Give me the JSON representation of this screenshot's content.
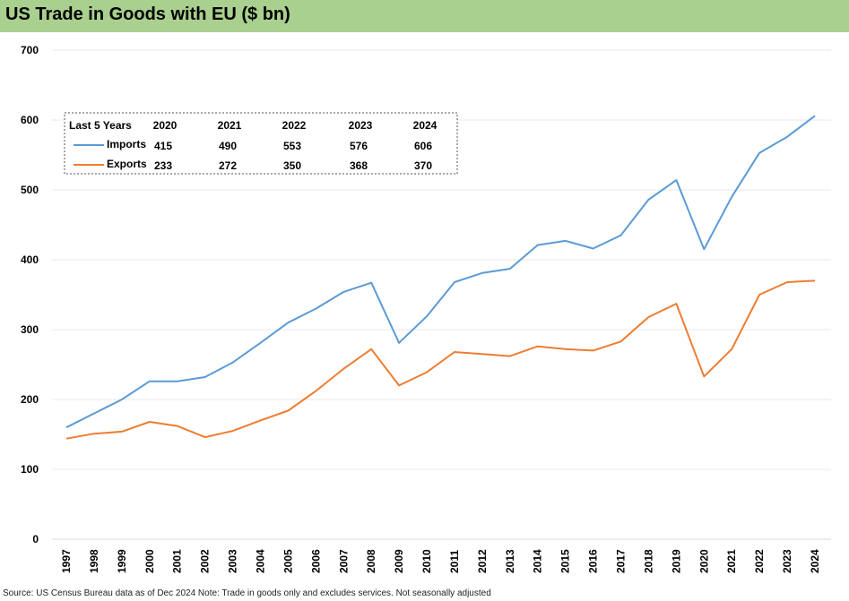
{
  "header": {
    "title": "US Trade in Goods with EU ($ bn)"
  },
  "footer": {
    "source": "Source: US Census Bureau data as of Dec 2024 Note: Trade in goods only and excludes services. Not seasonally adjusted"
  },
  "colors": {
    "title_bar": "#a9d08e",
    "imports": "#5b9bd5",
    "exports": "#ed7d31",
    "grid": "#e8e8e8"
  },
  "chart_data": {
    "type": "line",
    "title": "US Trade in Goods with EU ($ bn)",
    "xlabel": "",
    "ylabel": "",
    "ylim": [
      0,
      700
    ],
    "yticks": [
      0,
      100,
      200,
      300,
      400,
      500,
      600,
      700
    ],
    "grid": true,
    "legend_placement": "top-left",
    "x": [
      "1997",
      "1998",
      "1999",
      "2000",
      "2001",
      "2002",
      "2003",
      "2004",
      "2005",
      "2006",
      "2007",
      "2008",
      "2009",
      "2010",
      "2011",
      "2012",
      "2013",
      "2014",
      "2015",
      "2016",
      "2017",
      "2018",
      "2019",
      "2020",
      "2021",
      "2022",
      "2023",
      "2024"
    ],
    "series": [
      {
        "name": "Imports",
        "color": "#5b9bd5",
        "values": [
          160,
          180,
          200,
          226,
          226,
          232,
          253,
          281,
          310,
          330,
          354,
          367,
          281,
          319,
          368,
          381,
          387,
          421,
          427,
          416,
          435,
          486,
          514,
          415,
          490,
          553,
          576,
          606
        ]
      },
      {
        "name": "Exports",
        "color": "#ed7d31",
        "values": [
          144,
          151,
          154,
          168,
          162,
          146,
          155,
          170,
          184,
          212,
          244,
          272,
          220,
          239,
          268,
          265,
          262,
          276,
          272,
          270,
          283,
          318,
          337,
          233,
          272,
          350,
          368,
          370
        ]
      }
    ],
    "table": {
      "header_label": "Last 5 Years",
      "years": [
        "2020",
        "2021",
        "2022",
        "2023",
        "2024"
      ],
      "rows": [
        {
          "name": "Imports",
          "values": [
            "415",
            "490",
            "553",
            "576",
            "606"
          ]
        },
        {
          "name": "Exports",
          "values": [
            "233",
            "272",
            "350",
            "368",
            "370"
          ]
        }
      ]
    }
  }
}
